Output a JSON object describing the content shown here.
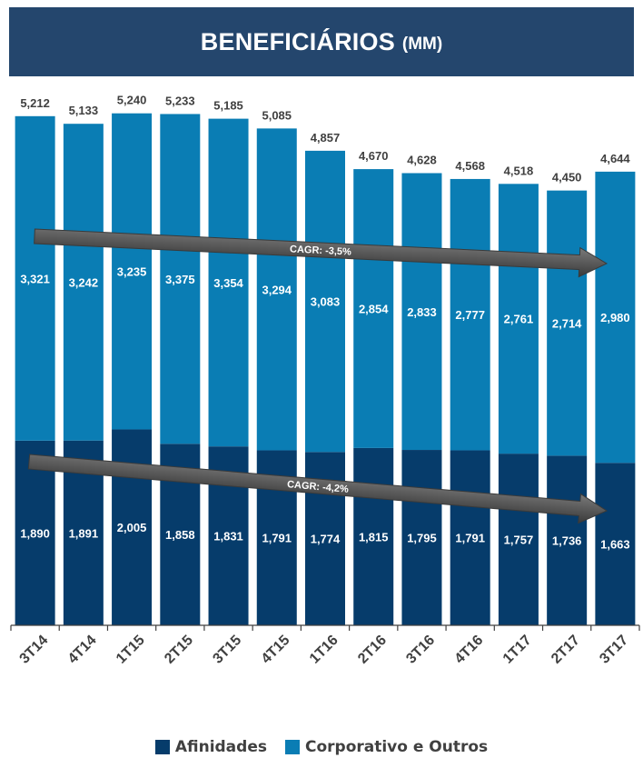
{
  "title": {
    "main": "BENEFICIÁRIOS",
    "unit": "(MM)"
  },
  "colors": {
    "title_bg": "#24466d",
    "afinidades": "#063c6b",
    "corporativo": "#0a7db4",
    "arrow": "#5a5a5a",
    "text": "#404040",
    "label_white": "#ffffff"
  },
  "chart_data": {
    "type": "bar",
    "stacked": true,
    "categories": [
      "3T14",
      "4T14",
      "1T15",
      "2T15",
      "3T15",
      "4T15",
      "1T16",
      "2T16",
      "3T16",
      "4T16",
      "1T17",
      "2T17",
      "3T17"
    ],
    "series": [
      {
        "name": "Afinidades",
        "values": [
          1890,
          1891,
          2005,
          1858,
          1831,
          1791,
          1774,
          1815,
          1795,
          1791,
          1757,
          1736,
          1663
        ],
        "labels": [
          "1,890",
          "1,891",
          "2,005",
          "1,858",
          "1,831",
          "1,791",
          "1,774",
          "1,815",
          "1,795",
          "1,791",
          "1,757",
          "1,736",
          "1,663"
        ]
      },
      {
        "name": "Corporativo e Outros",
        "values": [
          3321,
          3242,
          3235,
          3375,
          3354,
          3294,
          3083,
          2854,
          2833,
          2777,
          2761,
          2714,
          2980
        ],
        "labels": [
          "3,321",
          "3,242",
          "3,235",
          "3,375",
          "3,354",
          "3,294",
          "3,083",
          "2,854",
          "2,833",
          "2,777",
          "2,761",
          "2,714",
          "2,980"
        ]
      }
    ],
    "totals": [
      5212,
      5133,
      5240,
      5233,
      5185,
      5085,
      4857,
      4670,
      4628,
      4568,
      4518,
      4450,
      4644
    ],
    "total_labels": [
      "5,212",
      "5,133",
      "5,240",
      "5,233",
      "5,185",
      "5,085",
      "4,857",
      "4,670",
      "4,628",
      "4,568",
      "4,518",
      "4,450",
      "4,644"
    ],
    "annotations": [
      {
        "text": "CAGR: -3,5%",
        "series": "Corporativo e Outros"
      },
      {
        "text": "CAGR: -4,2%",
        "series": "Afinidades"
      }
    ],
    "legend_position": "bottom",
    "grid": false
  }
}
